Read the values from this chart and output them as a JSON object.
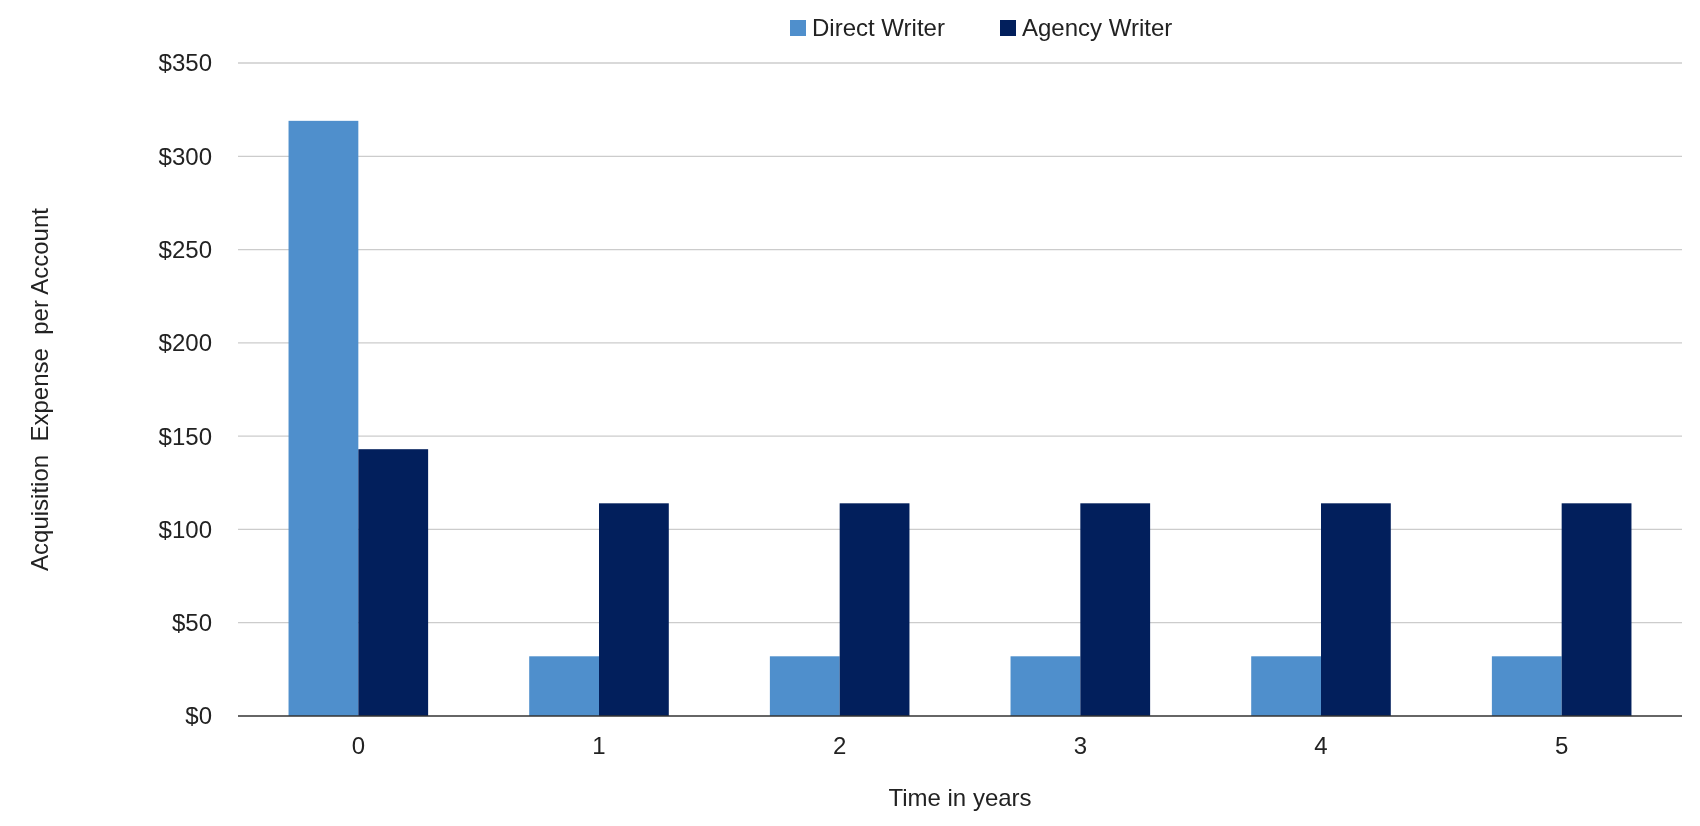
{
  "chart_data": {
    "type": "bar",
    "xlabel": "Time in years",
    "ylabel": "Acquisition  Expense  per Account",
    "categories": [
      "0",
      "1",
      "2",
      "3",
      "4",
      "5"
    ],
    "series": [
      {
        "name": "Direct Writer",
        "color": "#4f8fcc",
        "values": [
          319,
          32,
          32,
          32,
          32,
          32
        ]
      },
      {
        "name": "Agency Writer",
        "color": "#021f5c",
        "values": [
          143,
          114,
          114,
          114,
          114,
          114
        ]
      }
    ],
    "ylim": [
      0,
      350
    ],
    "yticks": [
      {
        "value": 0,
        "label": "$0"
      },
      {
        "value": 50,
        "label": "$50"
      },
      {
        "value": 100,
        "label": "$100"
      },
      {
        "value": 150,
        "label": "$150"
      },
      {
        "value": 200,
        "label": "$200"
      },
      {
        "value": 250,
        "label": "$250"
      },
      {
        "value": 300,
        "label": "$300"
      },
      {
        "value": 350,
        "label": "$350"
      }
    ],
    "grid": "y",
    "legend": "top"
  }
}
